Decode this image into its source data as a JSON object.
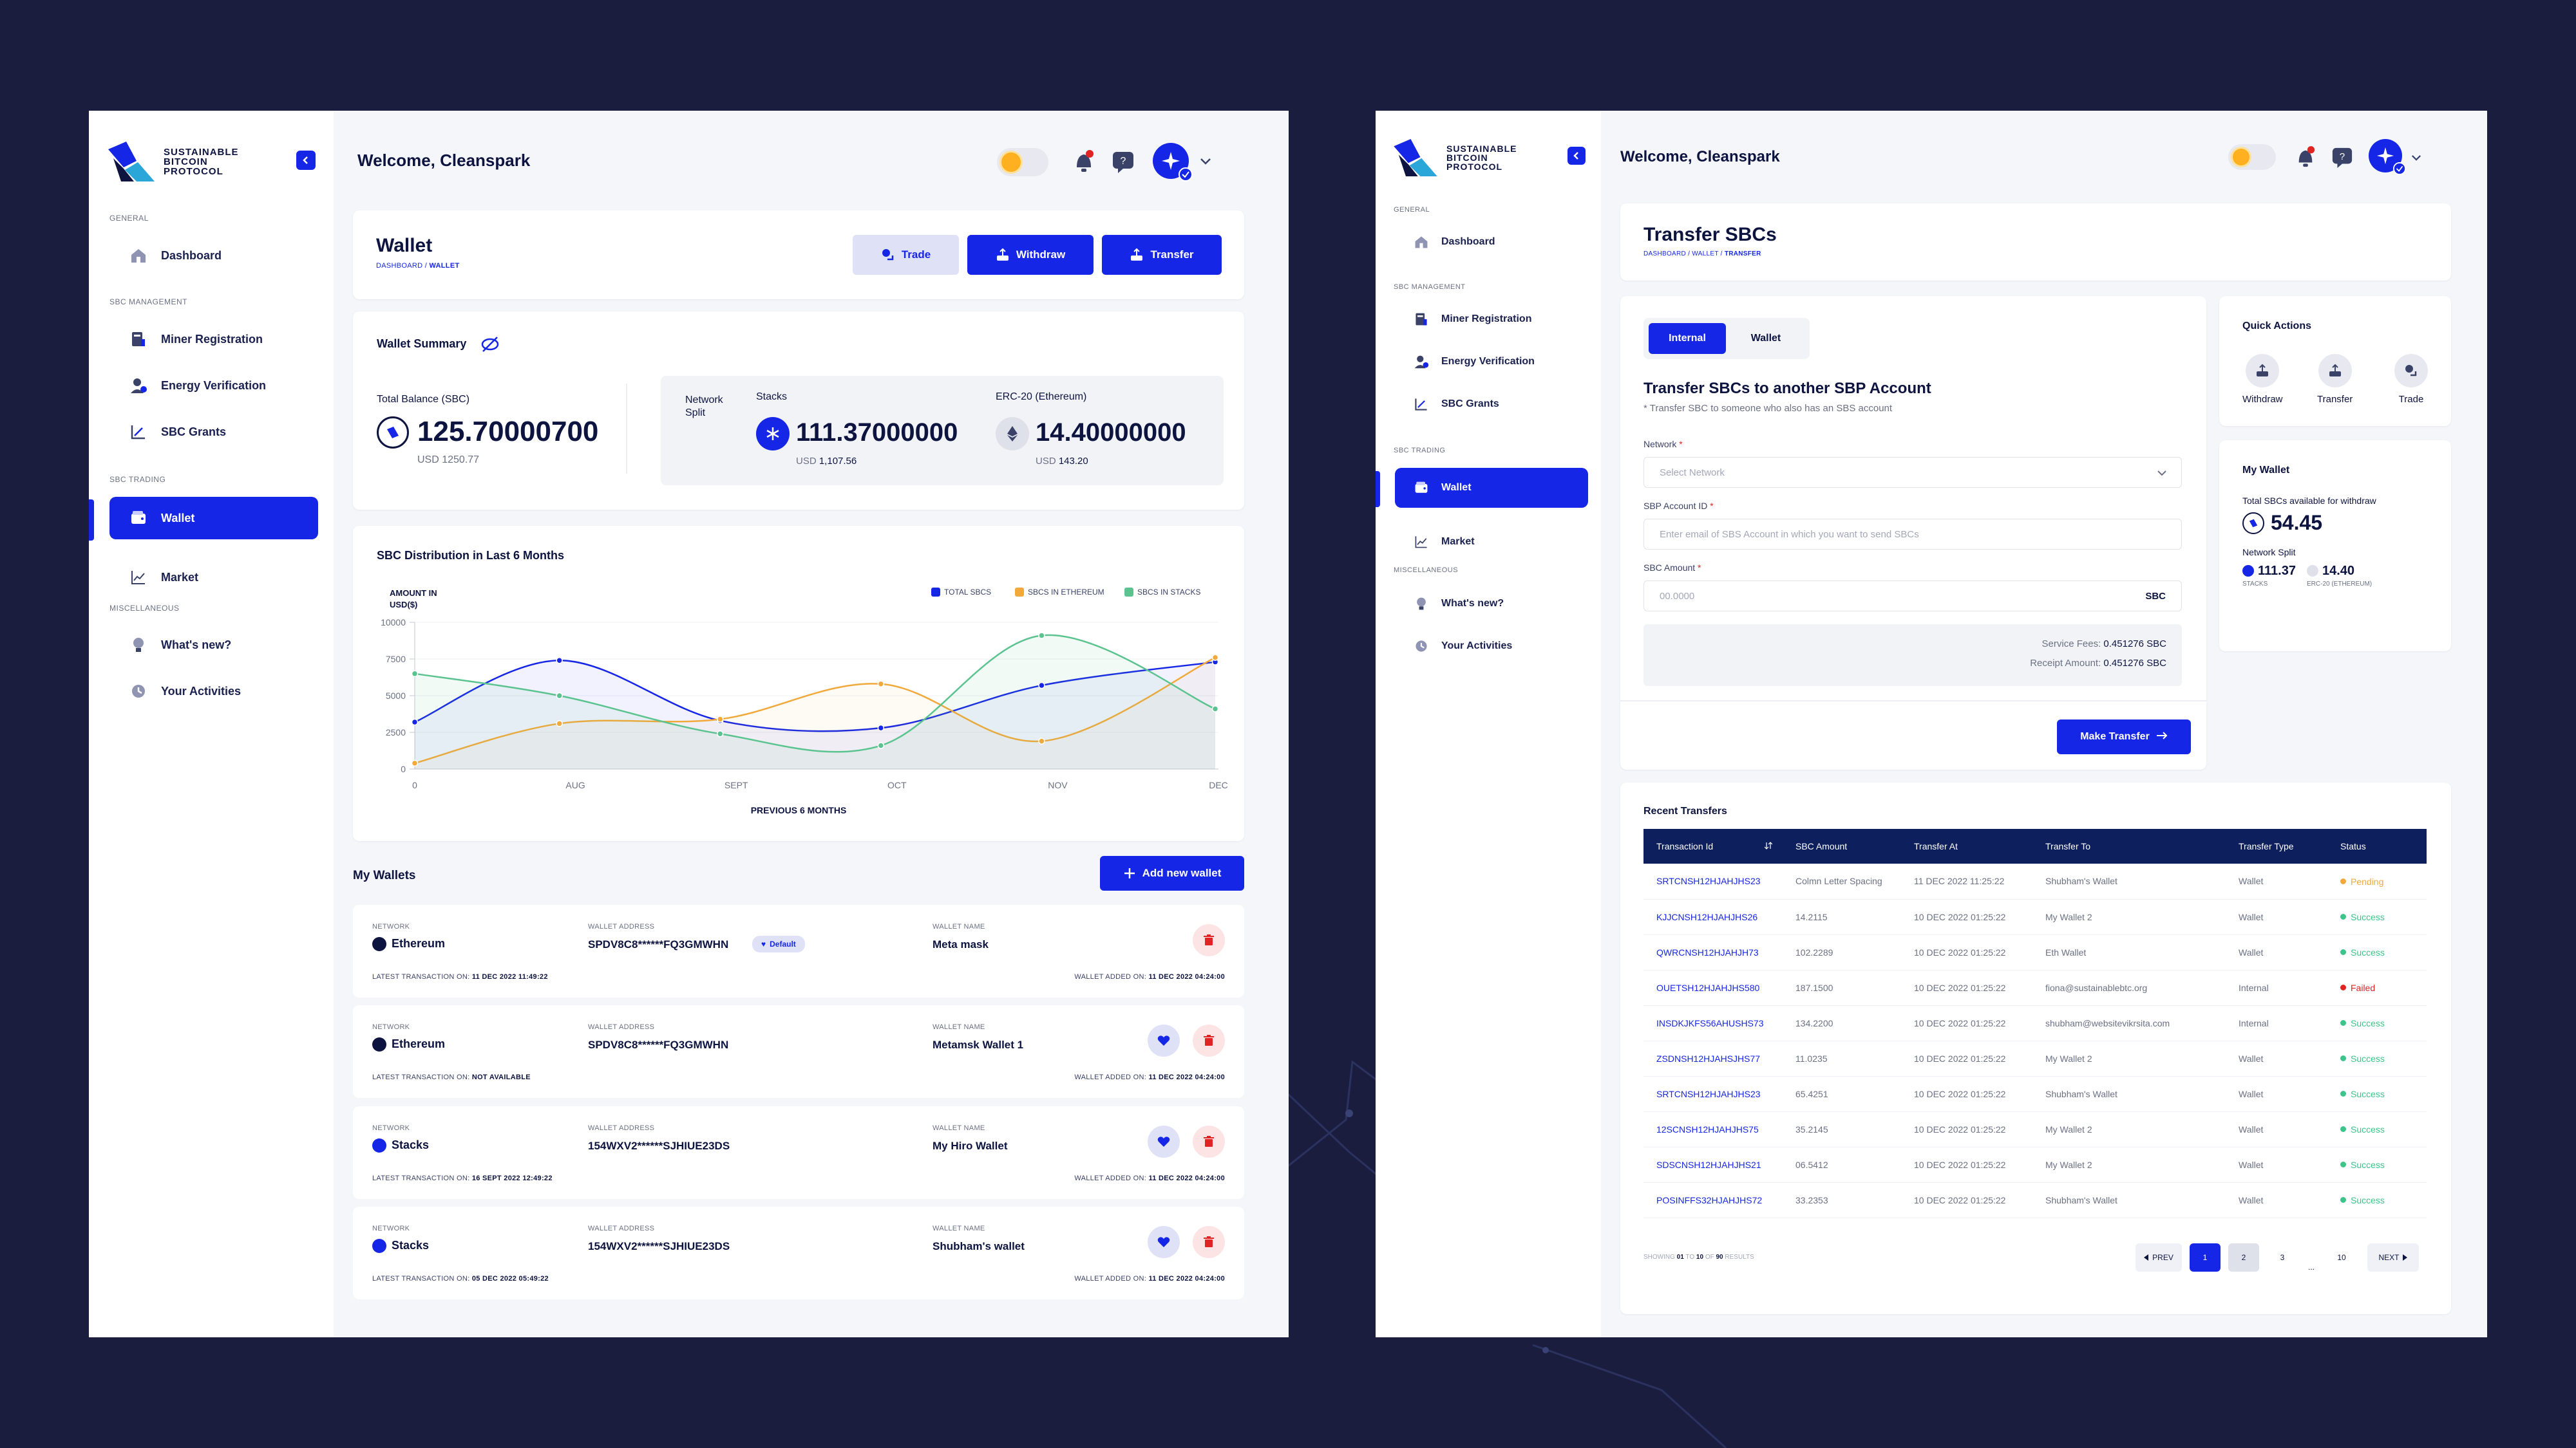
{
  "colors": {
    "background": "#1a1d3e",
    "primary": "#1626e6",
    "navy": "#0d1f5c",
    "total": "#1626e6",
    "ethereum": "#f2a93b",
    "stacks": "#5ac38f",
    "pending": "#f2a93b",
    "success": "#3cc48a",
    "failed": "#e02424"
  },
  "logo": {
    "line1": "SUSTAINABLE",
    "line2": "BITCOIN",
    "line3": "PROTOCOL"
  },
  "sidebar": {
    "sections": {
      "general": "GENERAL",
      "management": "SBC MANAGEMENT",
      "trading": "SBC TRADING",
      "misc": "MISCELLANEOUS"
    },
    "items": {
      "dashboard": "Dashboard",
      "miner": "Miner Registration",
      "energy": "Energy Verification",
      "grants": "SBC Grants",
      "wallet": "Wallet",
      "market": "Market",
      "whatsnew": "What's new?",
      "activities": "Your Activities"
    }
  },
  "header": {
    "welcome": "Welcome, Cleanspark"
  },
  "wallet_page": {
    "title": "Wallet",
    "breadcrumb": {
      "root": "DASHBOARD",
      "sep": " / ",
      "current": "WALLET"
    },
    "buttons": {
      "trade": "Trade",
      "withdraw": "Withdraw",
      "transfer": "Transfer"
    },
    "summary": {
      "title": "Wallet Summary",
      "total_label": "Total Balance (SBC)",
      "total_value": "125.70000700",
      "total_usd": "USD 1250.77",
      "network_split_label": "Network Split",
      "stacks_label": "Stacks",
      "stacks_value": "111.37000000",
      "stacks_usd_prefix": "USD ",
      "stacks_usd": "1,107.56",
      "erc_label": "ERC-20 (Ethereum)",
      "erc_value": "14.40000000",
      "erc_usd_prefix": "USD ",
      "erc_usd": "143.20"
    },
    "my_wallets_title": "My Wallets",
    "add_wallet": "Add new wallet",
    "labels": {
      "network": "NETWORK",
      "address": "WALLET ADDRESS",
      "name": "WALLET NAME",
      "latest": "LATEST TRANSACTION ON:",
      "added": "WALLET ADDED ON:"
    },
    "wallets": [
      {
        "network": "Ethereum",
        "address": "SPDV8C8******FQ3GMWHN",
        "badge": "Default",
        "name": "Meta mask",
        "latest": "11 DEC 2022 11:49:22",
        "added": "11 DEC 2022 04:24:00"
      },
      {
        "network": "Ethereum",
        "address": "SPDV8C8******FQ3GMWHN",
        "name": "Metamsk Wallet 1",
        "latest": "NOT AVAILABLE",
        "added": "11 DEC 2022 04:24:00"
      },
      {
        "network": "Stacks",
        "address": "154WXV2******SJHIUE23DS",
        "name": "My Hiro Wallet",
        "latest": "16 SEPT 2022 12:49:22",
        "added": "11 DEC 2022 04:24:00"
      },
      {
        "network": "Stacks",
        "address": "154WXV2******SJHIUE23DS",
        "name": "Shubham's wallet",
        "latest": "05 DEC 2022 05:49:22",
        "added": "11 DEC 2022 04:24:00"
      }
    ]
  },
  "chart_data": {
    "type": "line",
    "title": "SBC Distribution in Last 6 Months",
    "ylabel": "AMOUNT IN USD($)",
    "xlabel": "PREVIOUS 6 MONTHS",
    "categories": [
      "0",
      "AUG",
      "SEPT",
      "OCT",
      "NOV",
      "DEC"
    ],
    "x": [
      0,
      1,
      2,
      3,
      4,
      5
    ],
    "ylim": [
      0,
      10000
    ],
    "yticks": [
      "0",
      "2500",
      "5000",
      "7500",
      "10000"
    ],
    "legend_position": "top-right",
    "series": [
      {
        "name": "TOTAL SBCs",
        "values": [
          3200,
          7400,
          3300,
          2800,
          5700,
          7300
        ]
      },
      {
        "name": "SBCs IN ETHEREUM",
        "values": [
          400,
          3100,
          3400,
          5800,
          1900,
          7600
        ]
      },
      {
        "name": "SBCs IN STACKS",
        "values": [
          6500,
          5000,
          2400,
          1600,
          9100,
          4100
        ]
      }
    ],
    "markers": [
      [
        [
          0,
          3200
        ],
        [
          0.9,
          7400
        ],
        [
          1.9,
          3300
        ],
        [
          2.9,
          2800
        ],
        [
          3.9,
          5700
        ],
        [
          4.98,
          7300
        ]
      ],
      [
        [
          0,
          400
        ],
        [
          0.9,
          3100
        ],
        [
          1.9,
          3400
        ],
        [
          2.9,
          5800
        ],
        [
          3.9,
          1900
        ],
        [
          4.98,
          7600
        ]
      ],
      [
        [
          0,
          6500
        ],
        [
          0.9,
          5000
        ],
        [
          1.9,
          2400
        ],
        [
          2.9,
          1600
        ],
        [
          3.9,
          9100
        ],
        [
          4.98,
          4100
        ]
      ]
    ]
  },
  "transfer_page": {
    "title": "Transfer SBCs",
    "breadcrumb": {
      "root": "DASHBOARD",
      "sep1": " / ",
      "mid": "WALLET",
      "sep2": " / ",
      "current": "TRANSFER"
    },
    "tabs": {
      "internal": "Internal",
      "wallet": "Wallet"
    },
    "form_title": "Transfer SBCs to another SBP Account",
    "form_sub": "* Transfer SBC to someone who also has an SBS account",
    "network_label": "Network",
    "network_placeholder": "Select Network",
    "account_label": "SBP Account ID",
    "account_placeholder": "Enter email of SBS Account in which you want to send SBCs",
    "amount_label": "SBC Amount",
    "amount_placeholder": "00.0000",
    "amount_unit": "SBC",
    "service_fee_label": "Service Fees:",
    "service_fee": "0.451276 SBC",
    "receipt_label": "Receipt Amount:",
    "receipt": "0.451276 SBC",
    "submit": "Make Transfer",
    "required_mark": "*"
  },
  "quick_actions": {
    "title": "Quick Actions",
    "withdraw": "Withdraw",
    "transfer": "Transfer",
    "trade": "Trade"
  },
  "my_wallet": {
    "title": "My Wallet",
    "available_label": "Total SBCs available for withdraw",
    "available": "54.45",
    "split_label": "Network Split",
    "stacks_value": "111.37",
    "stacks_label": "STACKS",
    "erc_value": "14.40",
    "erc_label": "ERC-20 (ETHEREUM)"
  },
  "recent": {
    "title": "Recent Transfers",
    "columns": [
      "Transaction Id",
      "SBC Amount",
      "Transfer At",
      "Transfer To",
      "Transfer Type",
      "Status"
    ],
    "rows": [
      {
        "id": "SRTCNSH12HJAHJHS23",
        "amount": "Colmn Letter Spacing",
        "at": "11 DEC 2022 11:25:22",
        "to": "Shubham's Wallet",
        "type": "Wallet",
        "status": "Pending"
      },
      {
        "id": "KJJCNSH12HJAHJHS26",
        "amount": "14.2115",
        "at": "10 DEC 2022 01:25:22",
        "to": "My Wallet 2",
        "type": "Wallet",
        "status": "Success"
      },
      {
        "id": "QWRCNSH12HJAHJH73",
        "amount": "102.2289",
        "at": "10 DEC 2022 01:25:22",
        "to": "Eth Wallet",
        "type": "Wallet",
        "status": "Success"
      },
      {
        "id": "OUETSH12HJAHJHS580",
        "amount": "187.1500",
        "at": "10 DEC 2022 01:25:22",
        "to": "fiona@sustainablebtc.org",
        "type": "Internal",
        "status": "Failed"
      },
      {
        "id": "INSDKJKFS56AHUSHS73",
        "amount": "134.2200",
        "at": "10 DEC 2022 01:25:22",
        "to": "shubham@websitevikrsita.com",
        "type": "Internal",
        "status": "Success"
      },
      {
        "id": "ZSDNSH12HJAHSJHS77",
        "amount": "11.0235",
        "at": "10 DEC 2022 01:25:22",
        "to": "My Wallet 2",
        "type": "Wallet",
        "status": "Success"
      },
      {
        "id": "SRTCNSH12HJAHJHS23",
        "amount": "65.4251",
        "at": "10 DEC 2022 01:25:22",
        "to": "Shubham's Wallet",
        "type": "Wallet",
        "status": "Success"
      },
      {
        "id": "12SCNSH12HJAHJHS75",
        "amount": "35.2145",
        "at": "10 DEC 2022 01:25:22",
        "to": "My Wallet 2",
        "type": "Wallet",
        "status": "Success"
      },
      {
        "id": "SDSCNSH12HJAHJHS21",
        "amount": "06.5412",
        "at": "10 DEC 2022 01:25:22",
        "to": "My Wallet 2",
        "type": "Wallet",
        "status": "Success"
      },
      {
        "id": "POSINFFS32HJAHJHS72",
        "amount": "33.2353",
        "at": "10 DEC 2022 01:25:22",
        "to": "Shubham's Wallet",
        "type": "Wallet",
        "status": "Success"
      }
    ],
    "showing": {
      "prefix": "SHOWING",
      "from": "01",
      "to_word": "TO",
      "to": "10",
      "of_word": "OF",
      "total": "90",
      "suffix": "RESULTS"
    },
    "pagination": {
      "prev": "PREV",
      "pages": [
        "1",
        "2",
        "3"
      ],
      "ellipsis": "...",
      "last": "10",
      "next": "NEXT"
    }
  }
}
